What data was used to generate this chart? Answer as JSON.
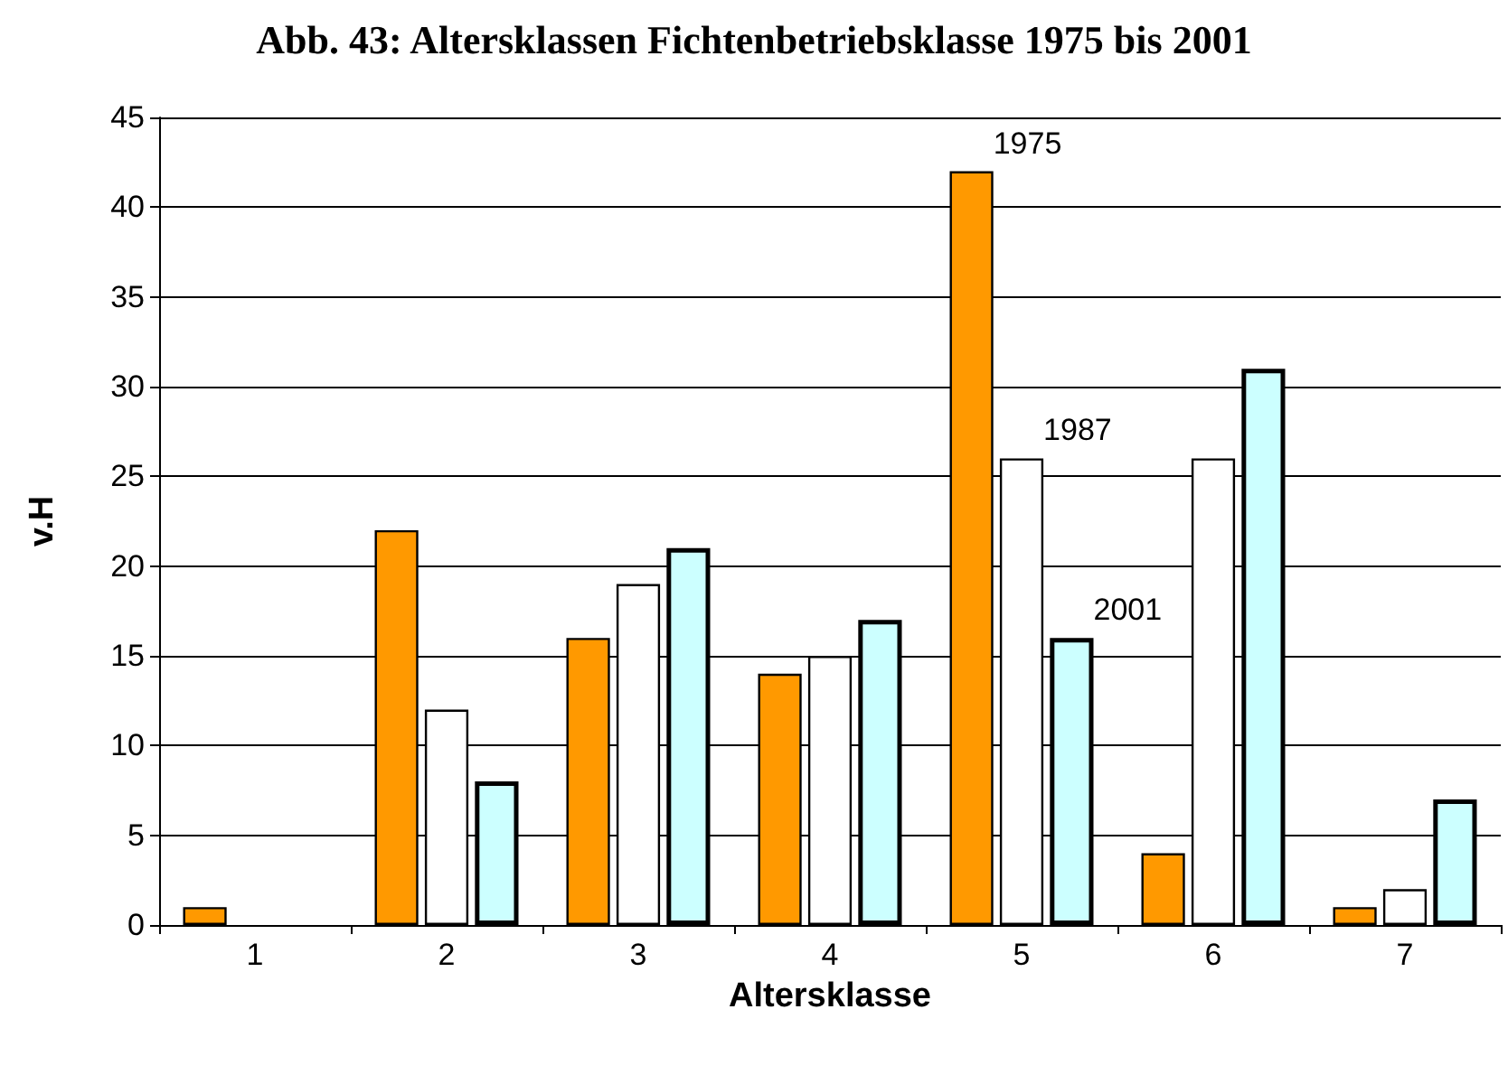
{
  "chart_data": {
    "type": "bar",
    "title": "Abb. 43: Altersklassen Fichtenbetriebsklasse 1975 bis 2001",
    "xlabel": "Altersklasse",
    "ylabel": "v.H",
    "categories": [
      "1",
      "2",
      "3",
      "4",
      "5",
      "6",
      "7"
    ],
    "series": [
      {
        "name": "1975",
        "color": "#ff9900",
        "values": [
          1,
          22,
          16,
          14,
          42,
          4,
          1
        ]
      },
      {
        "name": "1987",
        "color": "#ffffff",
        "values": [
          null,
          12,
          19,
          15,
          26,
          26,
          2
        ]
      },
      {
        "name": "2001",
        "color": "#ccffff",
        "values": [
          null,
          8,
          21,
          17,
          16,
          31,
          7
        ]
      }
    ],
    "ylim": [
      0,
      45
    ],
    "yticks": [
      0,
      5,
      10,
      15,
      20,
      25,
      30,
      35,
      40,
      45
    ],
    "grid": "y",
    "legend": false
  }
}
